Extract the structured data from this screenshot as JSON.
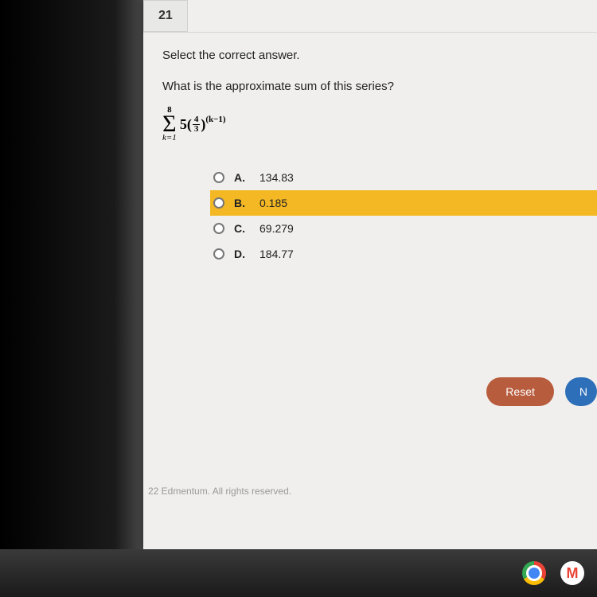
{
  "question_number": "21",
  "prompt": "Select the correct answer.",
  "question": "What is the approximate sum of this series?",
  "formula": {
    "upper_limit": "8",
    "lower_limit": "k=1",
    "coefficient": "5",
    "frac_num": "4",
    "frac_den": "3",
    "exponent": "(k−1)"
  },
  "options": [
    {
      "letter": "A.",
      "value": "134.83",
      "highlighted": false
    },
    {
      "letter": "B.",
      "value": "0.185",
      "highlighted": true
    },
    {
      "letter": "C.",
      "value": "69.279",
      "highlighted": false
    },
    {
      "letter": "D.",
      "value": "184.77",
      "highlighted": false
    }
  ],
  "buttons": {
    "reset": "Reset",
    "next": "N"
  },
  "footer": "22 Edmentum. All rights reserved.",
  "colors": {
    "page_bg": "#f0efed",
    "highlight": "#f4b824",
    "reset_btn": "#b85c3e",
    "next_btn": "#2d6fb8",
    "tab_bg": "#e8e8e6"
  }
}
